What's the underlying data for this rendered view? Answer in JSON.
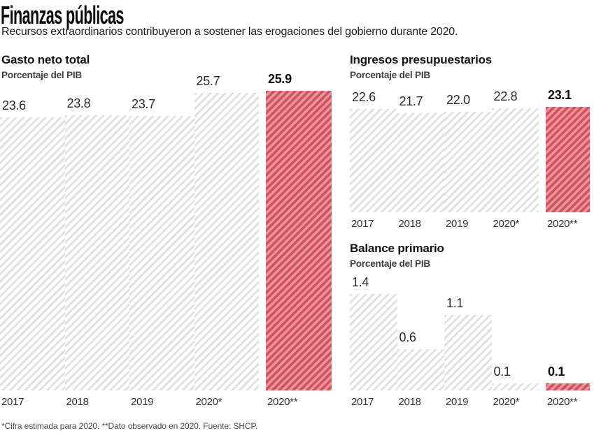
{
  "header": {
    "title": "Finanzas públicas",
    "subtitle": "Recursos extraordinarios contribuyeron a sostener las erogaciones del gobierno durante 2020."
  },
  "footer": {
    "note": "*Cifra estimada para 2020. **Dato observado en 2020. Fuente: SHCP."
  },
  "colors": {
    "highlight_red_dark": "#d4505e",
    "highlight_red_light": "#e9959c",
    "hatch_gray": "#e1e1e1",
    "text_primary": "#0a0a0a",
    "text_secondary": "#3e3e3e"
  },
  "chart_data": [
    {
      "id": "gasto",
      "type": "bar",
      "title": "Gasto neto total",
      "ylabel": "Porcentaje del PIB",
      "categories": [
        "2017",
        "2018",
        "2019",
        "2020*",
        "2020**"
      ],
      "values": [
        23.6,
        23.8,
        23.7,
        25.7,
        25.9
      ],
      "highlight_index": 4,
      "highlight_style": "solid-red-hatch",
      "ylim": [
        0,
        26.5
      ],
      "grid": false,
      "legend": "none"
    },
    {
      "id": "ingresos",
      "type": "bar",
      "title": "Ingresos presupuestarios",
      "ylabel": "Porcentaje del PIB",
      "categories": [
        "2017",
        "2018",
        "2019",
        "2020*",
        "2020**"
      ],
      "values": [
        22.6,
        21.7,
        22.0,
        22.8,
        23.1
      ],
      "highlight_index": 4,
      "highlight_style": "solid-red-hatch",
      "ylim": [
        0,
        23.5
      ],
      "grid": false,
      "legend": "none"
    },
    {
      "id": "balance",
      "type": "bar",
      "title": "Balance primario",
      "ylabel": "Porcentaje del PIB",
      "categories": [
        "2017",
        "2018",
        "2019",
        "2020*",
        "2020**"
      ],
      "values": [
        1.4,
        0.6,
        1.1,
        0.1,
        0.1
      ],
      "highlight_index": 4,
      "highlight_style": "solid-red-hatch",
      "ylim": [
        0,
        1.5
      ],
      "grid": false,
      "legend": "none"
    }
  ]
}
